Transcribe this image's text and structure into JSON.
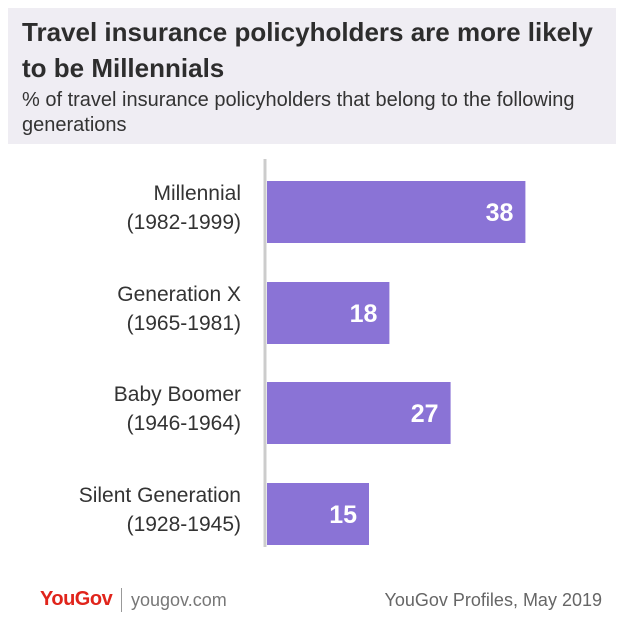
{
  "header": {
    "title": "Travel insurance policyholders are more likely to be Millennials",
    "subtitle": "% of travel insurance policyholders that belong to the following generations"
  },
  "footer": {
    "logo": "YouGov",
    "site": "yougov.com",
    "source": "YouGov Profiles, May 2019"
  },
  "colors": {
    "bar": "#8a73d6",
    "axis": "#cccccc",
    "header_bg": "#efedf3",
    "logo": "#e0241b"
  },
  "chart_data": {
    "type": "bar",
    "orientation": "horizontal",
    "categories": [
      [
        "Millennial",
        "(1982-1999)"
      ],
      [
        "Generation X",
        "(1965-1981)"
      ],
      [
        "Baby Boomer",
        "(1946-1964)"
      ],
      [
        "Silent Generation",
        "(1928-1945)"
      ]
    ],
    "values": [
      38,
      18,
      27,
      15
    ],
    "xlim": [
      0,
      50
    ],
    "grid": false,
    "legend": "none"
  }
}
